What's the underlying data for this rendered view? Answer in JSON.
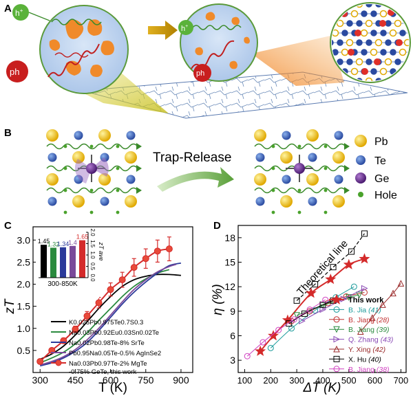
{
  "panels": {
    "a": {
      "label": "A",
      "particle_hole": "h",
      "particle_hole_sup": "+",
      "particle_phonon": "ph"
    },
    "b": {
      "label": "B",
      "arrow_text": "Trap-Release",
      "legend": [
        "Pb",
        "Te",
        "Ge",
        "Hole"
      ],
      "colors": {
        "Pb": "#f2c200",
        "Te": "#3a64b8",
        "Ge": "#6a2c91",
        "Hole": "#4aa22c"
      }
    },
    "c": {
      "label": "C",
      "ylabel_main": "zT",
      "xlabel": "T (K)",
      "inset_ylabel": "zT ave",
      "inset_xlabel": "300-850K",
      "legend": [
        "K0.025Pb0.975Te0.7S0.3",
        "Na0.03Pb0.92Eu0.03Sn0.02Te",
        "Na0.02Pb0.98Te-8% SrTe",
        "Pb0.95Na0.05Te-0.5% AgInSe2",
        "Na0.03Pb0.97Te-2% MgTe",
        "-0.75% GeTe, this work"
      ]
    },
    "d": {
      "label": "D",
      "ylabel": "η (%)",
      "xlabel": "ΔT (K)",
      "theory_label": "Theoretical line",
      "legend": [
        {
          "name": "This work",
          "ref": ""
        },
        {
          "name": "B. Jia",
          "ref": "(41)"
        },
        {
          "name": "B. Jiang",
          "ref": "(28)"
        },
        {
          "name": "B. Jiang",
          "ref": "(39)"
        },
        {
          "name": "Q. Zhang",
          "ref": "(43)"
        },
        {
          "name": "Y. Xing",
          "ref": "(42)"
        },
        {
          "name": "X. Hu",
          "ref": "(40)"
        },
        {
          "name": "B. Jiang",
          "ref": "(38)"
        }
      ]
    }
  },
  "chart_data": [
    {
      "id": "C",
      "type": "line",
      "xlabel": "T (K)",
      "ylabel": "zT",
      "xlim": [
        270,
        950
      ],
      "ylim": [
        0.0,
        3.3
      ],
      "xticks": [
        300,
        450,
        600,
        750,
        900
      ],
      "yticks": [
        0.5,
        1.0,
        1.5,
        2.0,
        2.5,
        3.0
      ],
      "series": [
        {
          "name": "K0.025Pb0.975Te0.7S0.3",
          "color": "#000000",
          "points": [
            [
              300,
              0.3
            ],
            [
              350,
              0.42
            ],
            [
              400,
              0.6
            ],
            [
              450,
              0.85
            ],
            [
              500,
              1.15
            ],
            [
              550,
              1.45
            ],
            [
              600,
              1.72
            ],
            [
              650,
              1.95
            ],
            [
              700,
              2.1
            ],
            [
              750,
              2.18
            ],
            [
              800,
              2.22
            ],
            [
              850,
              2.22
            ],
            [
              900,
              2.2
            ]
          ]
        },
        {
          "name": "Na0.03Pb0.92Eu0.03Sn0.02Te",
          "color": "#2a8a3e",
          "points": [
            [
              300,
              0.22
            ],
            [
              350,
              0.33
            ],
            [
              400,
              0.46
            ],
            [
              450,
              0.65
            ],
            [
              500,
              0.9
            ],
            [
              550,
              1.18
            ],
            [
              600,
              1.45
            ],
            [
              650,
              1.72
            ],
            [
              700,
              1.95
            ],
            [
              750,
              2.12
            ],
            [
              800,
              2.25
            ],
            [
              850,
              2.33
            ]
          ]
        },
        {
          "name": "Na0.02Pb0.98Te-8% SrTe",
          "color": "#2b3a9a",
          "points": [
            [
              300,
              0.15
            ],
            [
              350,
              0.22
            ],
            [
              400,
              0.33
            ],
            [
              450,
              0.48
            ],
            [
              500,
              0.68
            ],
            [
              550,
              0.95
            ],
            [
              600,
              1.25
            ],
            [
              650,
              1.55
            ],
            [
              700,
              1.82
            ],
            [
              750,
              2.05
            ],
            [
              800,
              2.25
            ],
            [
              850,
              2.42
            ],
            [
              900,
              2.48
            ]
          ]
        },
        {
          "name": "Pb0.95Na0.05Te-0.5% AgInSe2",
          "color": "#7a4a9a",
          "points": [
            [
              300,
              0.17
            ],
            [
              350,
              0.25
            ],
            [
              400,
              0.36
            ],
            [
              450,
              0.52
            ],
            [
              500,
              0.74
            ],
            [
              550,
              1.0
            ],
            [
              600,
              1.3
            ],
            [
              650,
              1.6
            ],
            [
              700,
              1.88
            ],
            [
              750,
              2.1
            ],
            [
              800,
              2.28
            ],
            [
              850,
              2.4
            ],
            [
              880,
              2.45
            ]
          ]
        },
        {
          "name": "Na0.03Pb0.97Te-2% MgTe -0.75% GeTe, this work",
          "color": "#d42a2a",
          "points": [
            [
              300,
              0.25
            ],
            [
              350,
              0.5
            ],
            [
              400,
              0.72
            ],
            [
              450,
              0.98
            ],
            [
              500,
              1.28
            ],
            [
              550,
              1.58
            ],
            [
              600,
              1.88
            ],
            [
              650,
              2.1
            ],
            [
              700,
              2.38
            ],
            [
              750,
              2.58
            ],
            [
              800,
              2.75
            ],
            [
              850,
              2.8
            ]
          ],
          "errors": [
            0.04,
            0.05,
            0.06,
            0.07,
            0.1,
            0.12,
            0.15,
            0.17,
            0.2,
            0.22,
            0.25,
            0.27
          ]
        }
      ],
      "inset": {
        "type": "bar",
        "ylabel": "zT ave",
        "xlabel": "300-850K",
        "ylim": [
          0.0,
          2.0
        ],
        "yticks": [
          0.0,
          0.5,
          1.0,
          1.5,
          2.0
        ],
        "values": [
          1.45,
          1.32,
          1.34,
          1.4,
          1.65
        ],
        "labels": [
          "1.45",
          "1.32",
          "1.34",
          "1.4",
          "1.65"
        ],
        "colors": [
          "#000000",
          "#2a8a3e",
          "#2b3a9a",
          "#7a4a9a",
          "#d42a2a"
        ]
      }
    },
    {
      "id": "D",
      "type": "scatter",
      "xlabel": "ΔT (K)",
      "ylabel": "η (%)",
      "xlim": [
        75,
        720
      ],
      "ylim": [
        1.5,
        19.5
      ],
      "xticks": [
        100,
        200,
        300,
        400,
        500,
        600,
        700
      ],
      "yticks": [
        3,
        6,
        9,
        12,
        15,
        18
      ],
      "theory": {
        "points": [
          [
            300,
            10.3
          ],
          [
            370,
            12.3
          ],
          [
            440,
            14.4
          ],
          [
            510,
            16.3
          ],
          [
            560,
            18.5
          ]
        ]
      },
      "series": [
        {
          "name": "This work",
          "ref": "",
          "color": "#d42a2a",
          "marker": "star",
          "points": [
            [
              160,
              4.1
            ],
            [
              210,
              6.0
            ],
            [
              265,
              7.9
            ],
            [
              355,
              11.2
            ],
            [
              430,
              12.9
            ],
            [
              500,
              14.7
            ],
            [
              560,
              15.4
            ]
          ]
        },
        {
          "name": "B. Jia",
          "ref": "(41)",
          "color": "#1a9a9a",
          "marker": "circle",
          "points": [
            [
              200,
              4.5
            ],
            [
              280,
              6.9
            ],
            [
              370,
              9.1
            ],
            [
              450,
              10.7
            ],
            [
              520,
              12.0
            ]
          ]
        },
        {
          "name": "B. Jiang",
          "ref": "(28)",
          "color": "#c03030",
          "marker": "circle",
          "points": [
            [
              280,
              7.8
            ],
            [
              350,
              9.0
            ],
            [
              420,
              10.0
            ],
            [
              490,
              10.8
            ],
            [
              560,
              11.3
            ]
          ]
        },
        {
          "name": "B. Jiang",
          "ref": "(39)",
          "color": "#2a8a3e",
          "marker": "triangle-down",
          "points": [
            [
              300,
              8.5
            ],
            [
              400,
              9.7
            ],
            [
              500,
              10.7
            ],
            [
              540,
              11.0
            ]
          ]
        },
        {
          "name": "Q. Zhang",
          "ref": "(43)",
          "color": "#8a4ab5",
          "marker": "triangle-right",
          "points": [
            [
              320,
              7.8
            ],
            [
              400,
              9.2
            ],
            [
              480,
              10.5
            ],
            [
              560,
              11.8
            ]
          ]
        },
        {
          "name": "Y. Xing",
          "ref": "(42)",
          "color": "#9a2a2a",
          "marker": "triangle-up",
          "points": [
            [
              545,
              6.5
            ],
            [
              590,
              8.2
            ],
            [
              630,
              9.8
            ],
            [
              670,
              11.2
            ],
            [
              700,
              12.4
            ]
          ]
        },
        {
          "name": "X. Hu",
          "ref": "(40)",
          "color": "#000000",
          "marker": "square",
          "points": [
            [
              270,
              7.5
            ],
            [
              330,
              8.7
            ],
            [
              400,
              9.8
            ],
            [
              440,
              10.3
            ]
          ]
        },
        {
          "name": "B. Jiang",
          "ref": "(38)",
          "color": "#d040c0",
          "marker": "circle",
          "points": [
            [
              110,
              3.5
            ],
            [
              170,
              5.2
            ],
            [
              230,
              6.7
            ],
            [
              290,
              8.0
            ],
            [
              350,
              9.2
            ],
            [
              410,
              10.4
            ]
          ]
        }
      ]
    }
  ]
}
